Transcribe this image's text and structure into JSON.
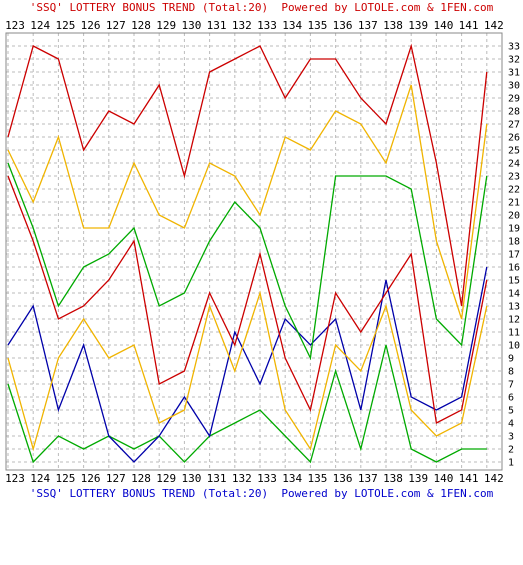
{
  "titles": {
    "top": "'SSQ' LOTTERY BONUS TREND (Total:20)  Powered by LOTOLE.com & 1FEN.com",
    "bottom": "'SSQ' LOTTERY BONUS TREND (Total:20)  Powered by LOTOLE.com & 1FEN.com"
  },
  "chart_data": {
    "type": "line",
    "title": "'SSQ' LOTTERY BONUS TREND (Total:20)  Powered by LOTOLE.com & 1FEN.com",
    "xlabel": "",
    "ylabel": "",
    "categories": [
      123,
      124,
      125,
      126,
      127,
      128,
      129,
      130,
      131,
      132,
      133,
      134,
      135,
      136,
      137,
      138,
      139,
      140,
      141,
      142
    ],
    "ylim": [
      1,
      33
    ],
    "yticks": [
      1,
      2,
      3,
      4,
      5,
      6,
      7,
      8,
      9,
      10,
      11,
      12,
      13,
      14,
      15,
      16,
      17,
      18,
      19,
      20,
      21,
      22,
      23,
      24,
      25,
      26,
      27,
      28,
      29,
      30,
      31,
      32,
      33
    ],
    "grid": true,
    "series": [
      {
        "color": "#00aa00",
        "values": [
          7,
          1,
          3,
          2,
          3,
          2,
          3,
          1,
          3,
          4,
          5,
          3,
          1,
          8,
          2,
          10,
          2,
          1,
          2,
          2
        ]
      },
      {
        "color": "#0000aa",
        "values": [
          10,
          13,
          5,
          10,
          3,
          1,
          3,
          6,
          3,
          11,
          7,
          12,
          10,
          12,
          5,
          15,
          6,
          5,
          6,
          16
        ]
      },
      {
        "color": "#f0b400",
        "values": [
          9,
          2,
          9,
          12,
          9,
          10,
          4,
          5,
          13,
          8,
          14,
          5,
          2,
          10,
          8,
          13,
          5,
          3,
          4,
          13
        ]
      },
      {
        "color": "#cc0000",
        "values": [
          23,
          18,
          12,
          13,
          15,
          18,
          7,
          8,
          14,
          10,
          17,
          9,
          5,
          14,
          11,
          14,
          17,
          4,
          5,
          15
        ]
      },
      {
        "color": "#00aa00",
        "values": [
          24,
          19,
          13,
          16,
          17,
          19,
          13,
          14,
          18,
          21,
          19,
          13,
          9,
          23,
          23,
          23,
          22,
          12,
          10,
          23
        ]
      },
      {
        "color": "#f0b400",
        "values": [
          25,
          21,
          26,
          19,
          19,
          24,
          20,
          19,
          24,
          23,
          20,
          26,
          25,
          28,
          27,
          24,
          30,
          18,
          12,
          27
        ]
      },
      {
        "color": "#cc0000",
        "values": [
          26,
          33,
          32,
          25,
          28,
          27,
          30,
          23,
          31,
          32,
          33,
          29,
          32,
          32,
          29,
          27,
          33,
          24,
          13,
          31
        ]
      }
    ]
  }
}
